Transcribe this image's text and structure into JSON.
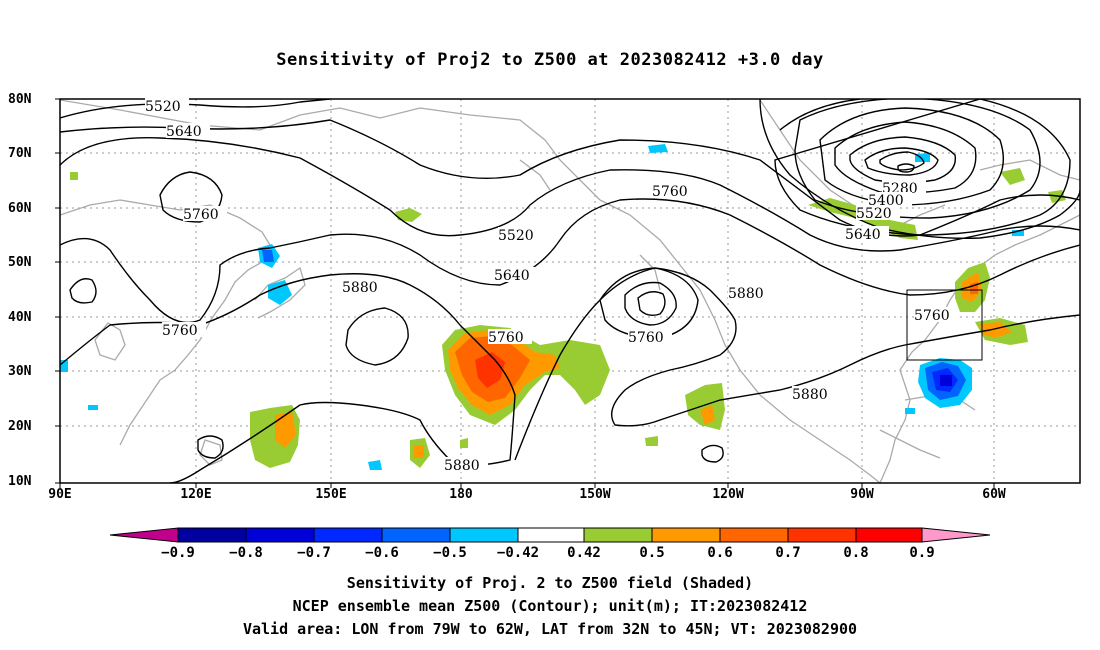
{
  "title": "Sensitivity of Proj2 to Z500 at 2023082412 +3.0 day",
  "map": {
    "lat_labels": [
      "80N",
      "70N",
      "60N",
      "50N",
      "40N",
      "30N",
      "20N",
      "10N"
    ],
    "lon_labels": [
      "90E",
      "120E",
      "150E",
      "180",
      "150W",
      "120W",
      "90W",
      "60W"
    ],
    "contour_labels": [
      {
        "text": "5520",
        "id": "c1"
      },
      {
        "text": "5640",
        "id": "c2"
      },
      {
        "text": "5760",
        "id": "c3"
      },
      {
        "text": "5760",
        "id": "c4"
      },
      {
        "text": "5880",
        "id": "c5"
      },
      {
        "text": "5760",
        "id": "c6"
      },
      {
        "text": "5880",
        "id": "c7"
      },
      {
        "text": "5520",
        "id": "c8"
      },
      {
        "text": "5640",
        "id": "c9"
      },
      {
        "text": "5760",
        "id": "c10"
      },
      {
        "text": "5760",
        "id": "c11"
      },
      {
        "text": "5880",
        "id": "c12"
      },
      {
        "text": "5880",
        "id": "c13"
      },
      {
        "text": "5280",
        "id": "c14"
      },
      {
        "text": "5400",
        "id": "c15"
      },
      {
        "text": "5520",
        "id": "c16"
      },
      {
        "text": "5640",
        "id": "c17"
      },
      {
        "text": "5760",
        "id": "c18"
      }
    ],
    "valid_box": "Valid area: LON 79W to 62W, LAT 32N to 45N"
  },
  "colorbar": {
    "labels": [
      "−0.9",
      "−0.8",
      "−0.7",
      "−0.6",
      "−0.5",
      "−0.42",
      "0.42",
      "0.5",
      "0.6",
      "0.7",
      "0.8",
      "0.9"
    ],
    "colors": {
      "neg_end": "#c0008c",
      "neg_09": "#0000a0",
      "neg_08": "#0000d8",
      "neg_07": "#0028ff",
      "neg_06": "#0064ff",
      "neg_05": "#00c8ff",
      "mid": "#ffffff",
      "pos_042": "#99cc33",
      "pos_05": "#ff9900",
      "pos_06": "#ff6600",
      "pos_07": "#ff3300",
      "pos_08": "#ff0000",
      "pos_end": "#ff99cc"
    }
  },
  "captions": {
    "line1": "Sensitivity of Proj. 2 to Z500 field (Shaded)",
    "line2": "NCEP ensemble mean Z500 (Contour); unit(m); IT:2023082412",
    "line3": "Valid area: LON from 79W to 62W, LAT from 32N to 45N; VT: 2023082900"
  }
}
